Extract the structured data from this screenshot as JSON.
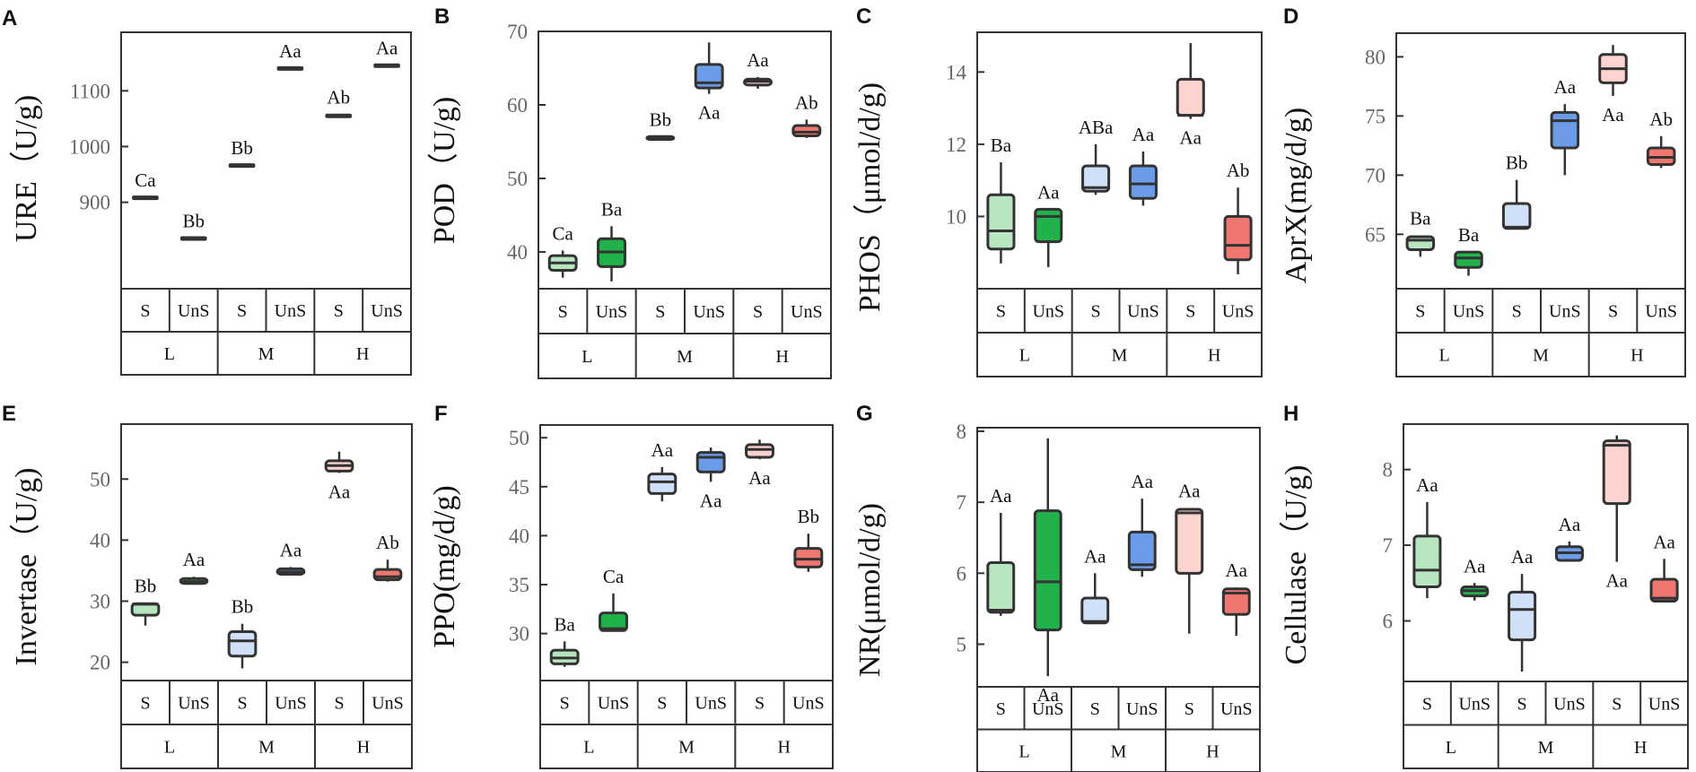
{
  "colors": {
    "L_S": "#b7e5c0",
    "L_UnS": "#22b24c",
    "M_S": "#cfe0f8",
    "M_UnS": "#6c9be8",
    "H_S": "#fcd3cf",
    "H_UnS": "#f07770",
    "stroke": "#333333"
  },
  "chart_data": [
    {
      "type": "box",
      "panel": "A",
      "ylabel": "URE（U/g)",
      "ylim": [
        745,
        1205
      ],
      "yticks": [
        900,
        1000,
        1100
      ],
      "groups": [
        "L",
        "M",
        "H"
      ],
      "treatments": [
        "S",
        "UnS"
      ],
      "boxes": [
        {
          "cat": "L-S",
          "min": 907,
          "q1": 907,
          "median": 908,
          "q3": 909,
          "max": 909,
          "label": "Ca"
        },
        {
          "cat": "L-UnS",
          "min": 834,
          "q1": 834,
          "median": 835,
          "q3": 836,
          "max": 836,
          "label": "Bb"
        },
        {
          "cat": "M-S",
          "min": 965,
          "q1": 965,
          "median": 966,
          "q3": 967,
          "max": 967,
          "label": "Bb"
        },
        {
          "cat": "M-UnS",
          "min": 1139,
          "q1": 1139,
          "median": 1140,
          "q3": 1141,
          "max": 1141,
          "label": "Aa"
        },
        {
          "cat": "H-S",
          "min": 1052,
          "q1": 1053,
          "median": 1055,
          "q3": 1057,
          "max": 1058,
          "label": "Ab"
        },
        {
          "cat": "H-UnS",
          "min": 1144,
          "q1": 1144,
          "median": 1145,
          "q3": 1146,
          "max": 1146,
          "label": "Aa"
        }
      ]
    },
    {
      "type": "box",
      "panel": "B",
      "ylabel": "POD（U/g)",
      "ylim": [
        35,
        70
      ],
      "yticks": [
        40,
        50,
        60,
        70
      ],
      "groups": [
        "L",
        "M",
        "H"
      ],
      "treatments": [
        "S",
        "UnS"
      ],
      "boxes": [
        {
          "cat": "L-S",
          "min": 36.5,
          "q1": 37.5,
          "median": 38.5,
          "q3": 39.5,
          "max": 40.2,
          "label": "Ca"
        },
        {
          "cat": "L-UnS",
          "min": 36,
          "q1": 38,
          "median": 40,
          "q3": 41.8,
          "max": 43.5,
          "label": "Ba"
        },
        {
          "cat": "M-S",
          "min": 55.3,
          "q1": 55.3,
          "median": 55.5,
          "q3": 55.7,
          "max": 55.7,
          "label": "Bb"
        },
        {
          "cat": "M-UnS",
          "min": 61.5,
          "q1": 62.3,
          "median": 63,
          "q3": 65.5,
          "max": 68.5,
          "label": "Aa"
        },
        {
          "cat": "H-S",
          "min": 62.2,
          "q1": 62.7,
          "median": 63.2,
          "q3": 63.5,
          "max": 63.8,
          "label": "Aa"
        },
        {
          "cat": "H-UnS",
          "min": 55.5,
          "q1": 55.8,
          "median": 56.3,
          "q3": 57.2,
          "max": 58,
          "label": "Ab"
        }
      ]
    },
    {
      "type": "box",
      "panel": "C",
      "ylabel": "PHOS（μmol/d/g)",
      "ylim": [
        8,
        15.1
      ],
      "yticks": [
        10,
        12,
        14
      ],
      "groups": [
        "L",
        "M",
        "H"
      ],
      "treatments": [
        "S",
        "UnS"
      ],
      "boxes": [
        {
          "cat": "L-S",
          "min": 8.7,
          "q1": 9.1,
          "median": 9.6,
          "q3": 10.6,
          "max": 11.5,
          "label": "Ba"
        },
        {
          "cat": "L-UnS",
          "min": 8.6,
          "q1": 9.3,
          "median": 10,
          "q3": 10.2,
          "max": 10.2,
          "label": "Aa"
        },
        {
          "cat": "M-S",
          "min": 10.6,
          "q1": 10.7,
          "median": 10.8,
          "q3": 11.4,
          "max": 12,
          "label": "ABa"
        },
        {
          "cat": "M-UnS",
          "min": 10.3,
          "q1": 10.5,
          "median": 10.9,
          "q3": 11.4,
          "max": 11.8,
          "label": "Aa"
        },
        {
          "cat": "H-S",
          "min": 12.7,
          "q1": 12.8,
          "median": 12.8,
          "q3": 13.8,
          "max": 14.8,
          "label": "Aa"
        },
        {
          "cat": "H-UnS",
          "min": 8.4,
          "q1": 8.8,
          "median": 9.2,
          "q3": 10,
          "max": 10.8,
          "label": "Ab"
        }
      ]
    },
    {
      "type": "box",
      "panel": "D",
      "ylabel": "AprX(mg/d/g)",
      "ylim": [
        60.4,
        82
      ],
      "yticks": [
        65,
        70,
        75,
        80
      ],
      "groups": [
        "L",
        "M",
        "H"
      ],
      "treatments": [
        "S",
        "UnS"
      ],
      "boxes": [
        {
          "cat": "L-S",
          "min": 63.1,
          "q1": 63.7,
          "median": 64.5,
          "q3": 64.8,
          "max": 64.9,
          "label": "Ba"
        },
        {
          "cat": "L-UnS",
          "min": 61.5,
          "q1": 62.2,
          "median": 63,
          "q3": 63.5,
          "max": 63.5,
          "label": "Ba"
        },
        {
          "cat": "M-S",
          "min": 65.4,
          "q1": 65.5,
          "median": 65.6,
          "q3": 67.6,
          "max": 69.6,
          "label": "Bb"
        },
        {
          "cat": "M-UnS",
          "min": 70,
          "q1": 72.3,
          "median": 74.6,
          "q3": 75.3,
          "max": 76,
          "label": "Aa"
        },
        {
          "cat": "H-S",
          "min": 76.7,
          "q1": 77.8,
          "median": 79,
          "q3": 80.2,
          "max": 81,
          "label": "Aa"
        },
        {
          "cat": "H-UnS",
          "min": 70.6,
          "q1": 70.9,
          "median": 71.5,
          "q3": 72.3,
          "max": 73.3,
          "label": "Ab"
        }
      ]
    },
    {
      "type": "box",
      "panel": "E",
      "ylabel": "Invertase（U/g)",
      "ylim": [
        17,
        59
      ],
      "yticks": [
        20,
        30,
        40,
        50
      ],
      "groups": [
        "L",
        "M",
        "H"
      ],
      "treatments": [
        "S",
        "UnS"
      ],
      "boxes": [
        {
          "cat": "L-S",
          "min": 26,
          "q1": 27.7,
          "median": 29.5,
          "q3": 29.6,
          "max": 29.7,
          "label": "Bb"
        },
        {
          "cat": "L-UnS",
          "min": 32.8,
          "q1": 32.9,
          "median": 33.2,
          "q3": 33.7,
          "max": 34,
          "label": "Aa"
        },
        {
          "cat": "M-S",
          "min": 19,
          "q1": 21,
          "median": 23.5,
          "q3": 25,
          "max": 26.3,
          "label": "Bb"
        },
        {
          "cat": "M-UnS",
          "min": 34.2,
          "q1": 34.4,
          "median": 34.8,
          "q3": 35.3,
          "max": 35.6,
          "label": "Aa"
        },
        {
          "cat": "H-S",
          "min": 51,
          "q1": 51.3,
          "median": 52.2,
          "q3": 53,
          "max": 54.5,
          "label": "Aa"
        },
        {
          "cat": "H-UnS",
          "min": 33.2,
          "q1": 33.5,
          "median": 34,
          "q3": 35.2,
          "max": 36.8,
          "label": "Ab"
        }
      ]
    },
    {
      "type": "box",
      "panel": "F",
      "ylabel": "PPO(mg/d/g)",
      "ylim": [
        25.2,
        51.3
      ],
      "yticks": [
        30,
        35,
        40,
        45,
        50
      ],
      "groups": [
        "L",
        "M",
        "H"
      ],
      "treatments": [
        "S",
        "UnS"
      ],
      "boxes": [
        {
          "cat": "L-S",
          "min": 26.6,
          "q1": 26.9,
          "median": 27.5,
          "q3": 28.3,
          "max": 29.2,
          "label": "Ba"
        },
        {
          "cat": "L-UnS",
          "min": 30.2,
          "q1": 30.3,
          "median": 30.5,
          "q3": 32.1,
          "max": 34.1,
          "label": "Ca"
        },
        {
          "cat": "M-S",
          "min": 43.5,
          "q1": 44.3,
          "median": 45.5,
          "q3": 46.3,
          "max": 47,
          "label": "Aa"
        },
        {
          "cat": "M-UnS",
          "min": 45.5,
          "q1": 46.5,
          "median": 48,
          "q3": 48.5,
          "max": 49,
          "label": "Aa"
        },
        {
          "cat": "H-S",
          "min": 47.8,
          "q1": 48,
          "median": 48.8,
          "q3": 49.3,
          "max": 49.8,
          "label": "Aa"
        },
        {
          "cat": "H-UnS",
          "min": 36.3,
          "q1": 36.8,
          "median": 37.6,
          "q3": 38.7,
          "max": 40.2,
          "label": "Bb"
        }
      ]
    },
    {
      "type": "box",
      "panel": "G",
      "ylabel": "NR(μmol/d/g)",
      "ylim": [
        4.4,
        8.05
      ],
      "yticks": [
        5,
        6,
        7,
        8
      ],
      "groups": [
        "L",
        "M",
        "H"
      ],
      "treatments": [
        "S",
        "UnS"
      ],
      "boxes": [
        {
          "cat": "L-S",
          "min": 5.4,
          "q1": 5.45,
          "median": 5.48,
          "q3": 6.15,
          "max": 6.85,
          "label": "Aa"
        },
        {
          "cat": "L-UnS",
          "min": 4.55,
          "q1": 5.2,
          "median": 5.88,
          "q3": 6.88,
          "max": 7.9,
          "label": "Aa"
        },
        {
          "cat": "M-S",
          "min": 5.3,
          "q1": 5.3,
          "median": 5.32,
          "q3": 5.65,
          "max": 6,
          "label": "Aa"
        },
        {
          "cat": "M-UnS",
          "min": 5.95,
          "q1": 6.05,
          "median": 6.12,
          "q3": 6.58,
          "max": 7.05,
          "label": "Aa"
        },
        {
          "cat": "H-S",
          "min": 5.15,
          "q1": 6,
          "median": 6.85,
          "q3": 6.9,
          "max": 6.92,
          "label": "Aa"
        },
        {
          "cat": "H-UnS",
          "min": 5.12,
          "q1": 5.42,
          "median": 5.72,
          "q3": 5.78,
          "max": 5.8,
          "label": "Aa"
        }
      ]
    },
    {
      "type": "box",
      "panel": "H",
      "ylabel": "Cellulase（U/g)",
      "ylim": [
        5.2,
        8.6
      ],
      "yticks": [
        6,
        7,
        8
      ],
      "groups": [
        "L",
        "M",
        "H"
      ],
      "treatments": [
        "S",
        "UnS"
      ],
      "boxes": [
        {
          "cat": "L-S",
          "min": 6.3,
          "q1": 6.45,
          "median": 6.67,
          "q3": 7.12,
          "max": 7.57,
          "label": "Aa"
        },
        {
          "cat": "L-UnS",
          "min": 6.27,
          "q1": 6.33,
          "median": 6.4,
          "q3": 6.45,
          "max": 6.5,
          "label": "Aa"
        },
        {
          "cat": "M-S",
          "min": 5.33,
          "q1": 5.75,
          "median": 6.15,
          "q3": 6.38,
          "max": 6.62,
          "label": "Aa"
        },
        {
          "cat": "M-UnS",
          "min": 6.8,
          "q1": 6.8,
          "median": 6.9,
          "q3": 6.98,
          "max": 7.05,
          "label": "Aa"
        },
        {
          "cat": "H-S",
          "min": 6.78,
          "q1": 7.55,
          "median": 8.32,
          "q3": 8.38,
          "max": 8.45,
          "label": "Aa"
        },
        {
          "cat": "H-UnS",
          "min": 6.25,
          "q1": 6.26,
          "median": 6.3,
          "q3": 6.55,
          "max": 6.82,
          "label": "Aa"
        }
      ]
    }
  ]
}
